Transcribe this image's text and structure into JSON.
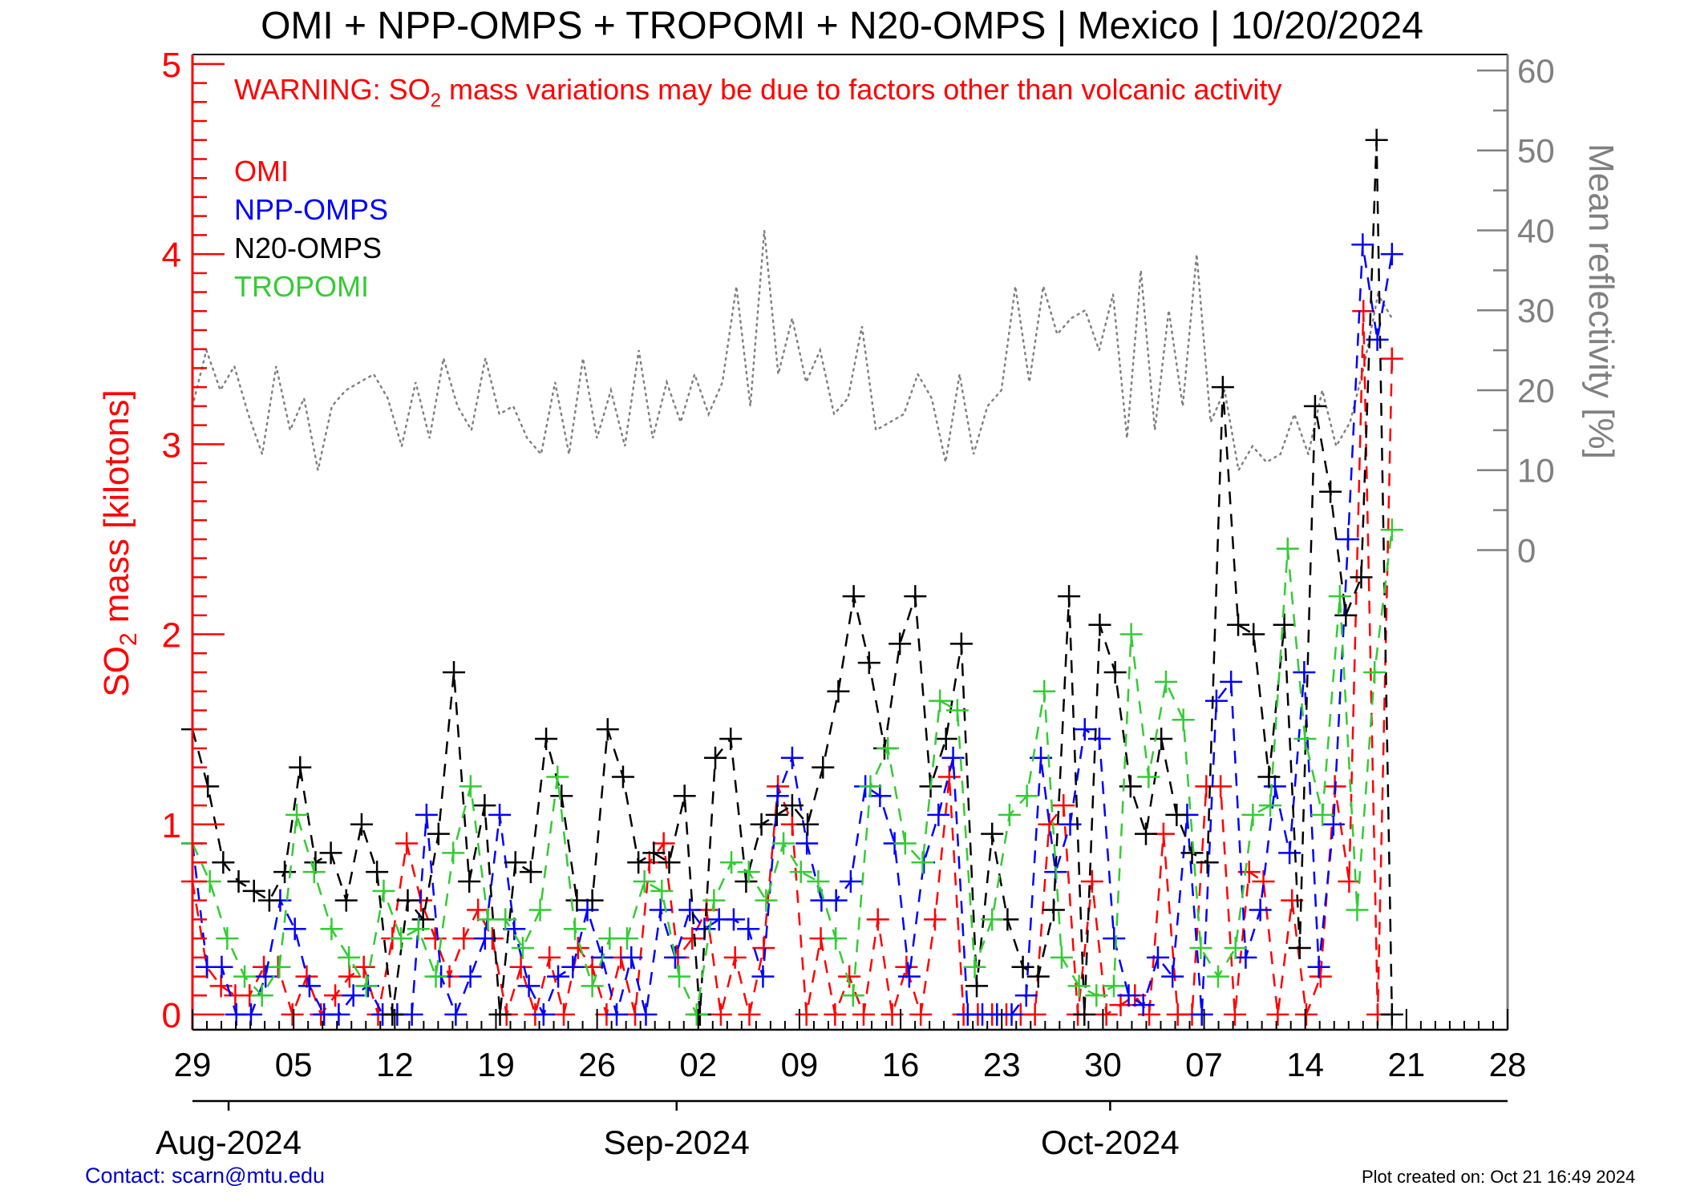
{
  "chart_data": {
    "type": "line",
    "title": "OMI + NPP-OMPS + TROPOMI + N20-OMPS | Mexico | 10/20/2024",
    "warning": {
      "prefix": "WARNING: SO",
      "sub": "2",
      "suffix": " mass variations may be due to factors other than volcanic activity"
    },
    "ylabel_left": {
      "prefix": "SO",
      "sub": "2",
      "suffix": " mass [kilotons]"
    },
    "ylabel_right": "Mean reflectivity [%]",
    "ylim_left": [
      -0.08,
      5.05
    ],
    "yticks_left": [
      "0",
      "1",
      "2",
      "3",
      "4",
      "5"
    ],
    "ylim_right": [
      -60,
      62
    ],
    "yticks_right": [
      "0",
      "10",
      "20",
      "30",
      "40",
      "50",
      "60"
    ],
    "x_start_day": 0,
    "x_end_day": 91,
    "xtick_labels": [
      "29",
      "05",
      "12",
      "19",
      "26",
      "02",
      "09",
      "16",
      "23",
      "30",
      "07",
      "14",
      "21",
      "28"
    ],
    "month_labels": [
      "Aug-2024",
      "Sep-2024",
      "Oct-2024"
    ],
    "month_start_days": [
      2.5,
      33.5,
      63.5
    ],
    "legend": [
      "OMI",
      "NPP-OMPS",
      "N20-OMPS",
      "TROPOMI"
    ],
    "colors": {
      "OMI": "#ff0000",
      "NPP-OMPS": "#0000ff",
      "N20-OMPS": "#000000",
      "TROPOMI": "#33cc33",
      "reflectivity": "#808080",
      "axis_left": "#ff0000",
      "axis_right": "#808080"
    },
    "series": [
      {
        "name": "OMI",
        "color": "#ff0000",
        "values": [
          0.7,
          0.25,
          0.15,
          0.1,
          0.1,
          0.25,
          0.25,
          0.0,
          0.2,
          0.0,
          0.1,
          0.2,
          0.25,
          0.0,
          0.4,
          0.9,
          0.6,
          0.4,
          0.2,
          0.4,
          0.55,
          0.4,
          0.0,
          0.25,
          0.0,
          0.3,
          0.0,
          0.35,
          0.25,
          0.0,
          0.3,
          0.0,
          0.8,
          0.9,
          0.3,
          0.4,
          0.55,
          0.0,
          0.3,
          0.0,
          0.35,
          1.2,
          1.0,
          0.0,
          0.4,
          0.0,
          0.2,
          0.0,
          0.5,
          0.0,
          0.25,
          0.0,
          0.5,
          1.25,
          0.0,
          0.0,
          0.0,
          0.0,
          0.0,
          0.0,
          1.0,
          1.1,
          0.0,
          0.7,
          0.0,
          0.05,
          0.1,
          0.0,
          0.95,
          0.0,
          0.0,
          1.2,
          1.2,
          0.0,
          0.75,
          0.7,
          0.0,
          0.6,
          0.0,
          0.2,
          1.2,
          0.7,
          3.7,
          0.0,
          3.45
        ]
      },
      {
        "name": "NPP-OMPS",
        "color": "#0000ff",
        "values": [
          0.9,
          0.25,
          0.25,
          0.0,
          0.0,
          0.2,
          0.6,
          0.45,
          0.15,
          0.0,
          0.0,
          0.1,
          0.15,
          0.0,
          0.0,
          0.0,
          1.05,
          0.2,
          0.0,
          0.2,
          0.4,
          1.05,
          0.45,
          0.15,
          0.0,
          0.2,
          0.25,
          0.55,
          0.3,
          0.0,
          0.3,
          0.0,
          0.55,
          0.3,
          0.55,
          0.45,
          0.5,
          0.5,
          0.45,
          0.2,
          1.15,
          1.35,
          0.9,
          0.6,
          0.6,
          0.7,
          1.2,
          1.15,
          0.9,
          0.2,
          0.8,
          1.05,
          1.35,
          0.0,
          0.0,
          0.0,
          0.0,
          0.1,
          1.35,
          0.75,
          1.0,
          1.5,
          1.45,
          0.4,
          0.1,
          0.05,
          0.3,
          0.2,
          1.05,
          0.0,
          1.65,
          1.75,
          0.3,
          0.55,
          1.2,
          0.85,
          1.8,
          0.25,
          1.0,
          2.5,
          4.05,
          3.55,
          4.0
        ]
      },
      {
        "name": "N20-OMPS",
        "color": "#000000",
        "values": [
          1.5,
          1.2,
          0.8,
          0.7,
          0.65,
          0.6,
          0.75,
          1.3,
          0.8,
          0.85,
          0.6,
          1.0,
          0.75,
          0.0,
          0.6,
          0.5,
          0.95,
          1.8,
          0.7,
          1.1,
          0.0,
          0.8,
          0.75,
          1.45,
          1.15,
          0.6,
          0.6,
          1.5,
          1.25,
          0.8,
          0.85,
          0.8,
          1.15,
          0.0,
          1.35,
          1.45,
          0.7,
          1.0,
          1.05,
          1.1,
          1.0,
          1.3,
          1.7,
          2.2,
          1.85,
          1.4,
          1.95,
          2.2,
          1.2,
          1.45,
          1.95,
          0.15,
          0.95,
          0.5,
          0.25,
          0.2,
          0.55,
          2.2,
          0.0,
          2.05,
          1.8,
          1.2,
          0.95,
          1.45,
          1.05,
          0.85,
          0.8,
          3.3,
          2.05,
          2.0,
          1.25,
          2.05,
          0.35,
          3.2,
          2.75,
          2.1,
          2.3,
          4.6,
          0.0
        ]
      },
      {
        "name": "TROPOMI",
        "color": "#33cc33",
        "values": [
          0.9,
          0.7,
          0.4,
          0.2,
          0.1,
          0.25,
          1.05,
          0.75,
          0.45,
          0.3,
          0.15,
          0.65,
          0.4,
          0.45,
          0.2,
          0.85,
          1.2,
          0.5,
          0.5,
          0.35,
          0.55,
          1.25,
          0.45,
          0.15,
          0.4,
          0.4,
          0.7,
          0.65,
          0.2,
          0.0,
          0.6,
          0.8,
          0.75,
          0.6,
          0.9,
          0.75,
          0.7,
          0.4,
          0.1,
          1.2,
          1.4,
          0.9,
          0.8,
          1.65,
          1.6,
          0.25,
          0.5,
          1.05,
          1.15,
          1.7,
          0.3,
          0.15,
          0.1,
          0.15,
          2.0,
          1.25,
          1.75,
          1.55,
          0.35,
          0.2,
          0.35,
          1.05,
          1.1,
          2.45,
          1.45,
          1.05,
          2.2,
          0.55,
          1.8,
          2.55
        ]
      },
      {
        "name": "Mean reflectivity",
        "color": "#808080",
        "values": [
          18,
          25,
          20,
          23,
          17,
          12,
          23,
          15,
          19,
          10,
          18,
          20,
          21,
          22,
          19,
          13,
          21,
          14,
          24,
          18,
          15,
          24,
          17,
          18,
          14,
          12,
          21,
          12,
          24,
          14,
          20,
          13,
          25,
          14,
          21,
          16,
          22,
          17,
          21,
          33,
          18,
          40,
          22,
          29,
          21,
          25,
          17,
          19,
          28,
          15,
          16,
          17,
          22,
          19,
          11,
          22,
          12,
          18,
          20,
          33,
          21,
          33,
          27,
          29,
          30,
          25,
          32,
          14,
          35,
          15,
          30,
          18,
          37,
          16,
          20,
          10,
          13,
          11,
          12,
          17,
          12,
          20,
          13,
          16,
          23,
          32,
          29
        ]
      }
    ],
    "grid": false,
    "legend_placement": "top-left"
  },
  "footer": {
    "contact": "Contact: scarn@mtu.edu",
    "created": "Plot created on: Oct 21 16:49 2024"
  }
}
